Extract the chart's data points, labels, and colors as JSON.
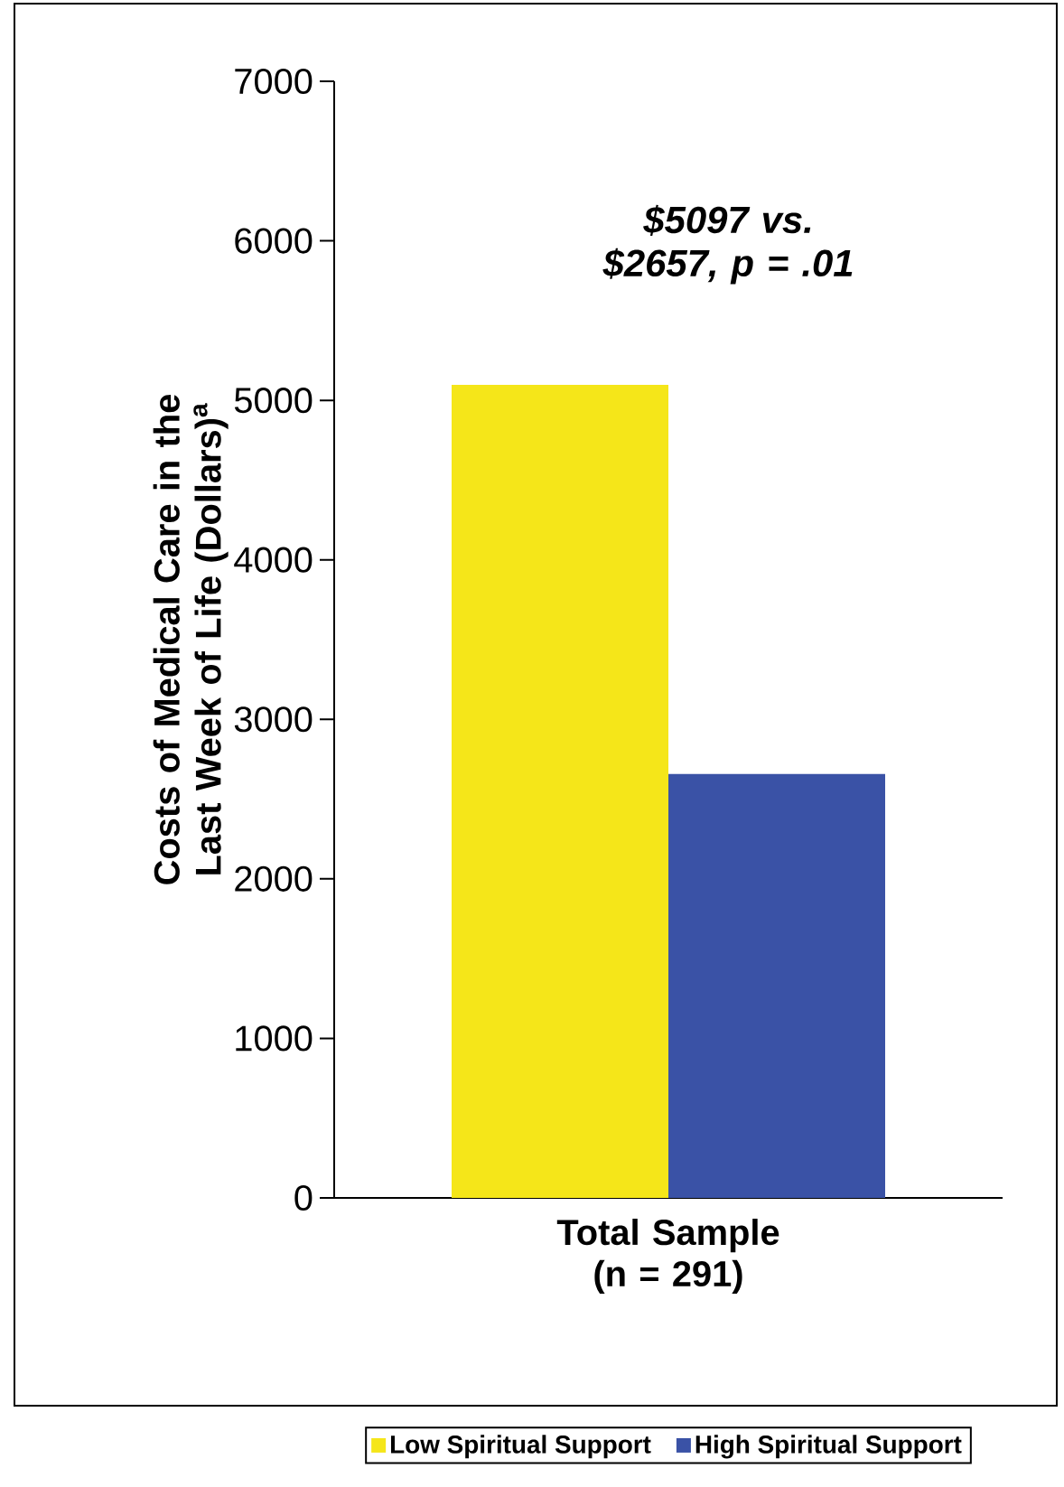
{
  "chart_data": {
    "type": "bar",
    "categories": [
      "Total Sample (n = 291)"
    ],
    "series": [
      {
        "name": "Low Spiritual Support",
        "color": "#f5e619",
        "values": [
          5097
        ]
      },
      {
        "name": "High Spiritual Support",
        "color": "#3a52a6",
        "values": [
          2657
        ]
      }
    ],
    "ylabel": "Costs of Medical Care in the Last Week of Life (Dollars)$^{a}$",
    "annotations": [
      "$5097 vs. $2657, p = .01"
    ],
    "ylim": [
      0,
      7000
    ],
    "yticks": [
      0,
      1000,
      2000,
      3000,
      4000,
      5000,
      6000,
      7000
    ],
    "grid": false,
    "legend": "bottom"
  }
}
